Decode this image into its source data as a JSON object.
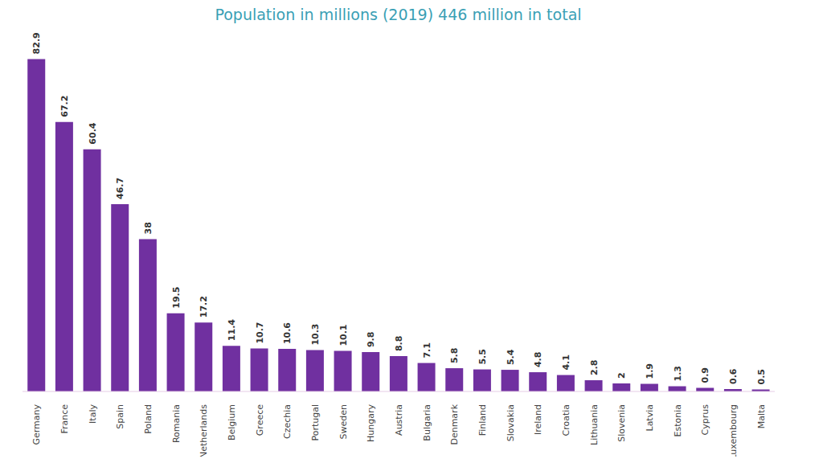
{
  "chart_data": {
    "type": "bar",
    "title": "Population in millions (2019) 446 million in total",
    "categories": [
      "Germany",
      "France",
      "Italy",
      "Spain",
      "Poland",
      "Romania",
      "Netherlands",
      "Belgium",
      "Greece",
      "Czechia",
      "Portugal",
      "Sweden",
      "Hungary",
      "Austria",
      "Bulgaria",
      "Denmark",
      "Finland",
      "Slovakia",
      "Ireland",
      "Croatia",
      "Lithuania",
      "Slovenia",
      "Latvia",
      "Estonia",
      "Cyprus",
      "Luxembourg",
      "Malta"
    ],
    "values": [
      82.9,
      67.2,
      60.4,
      46.7,
      38,
      19.5,
      17.2,
      11.4,
      10.7,
      10.6,
      10.3,
      10.1,
      9.8,
      8.8,
      7.1,
      5.8,
      5.5,
      5.4,
      4.8,
      4.1,
      2.8,
      2,
      1.9,
      1.3,
      0.9,
      0.6,
      0.5
    ],
    "color": "#7030a0",
    "ylim": [
      0,
      90
    ],
    "data_labels": true,
    "tick_labels": "x",
    "grid": false
  }
}
